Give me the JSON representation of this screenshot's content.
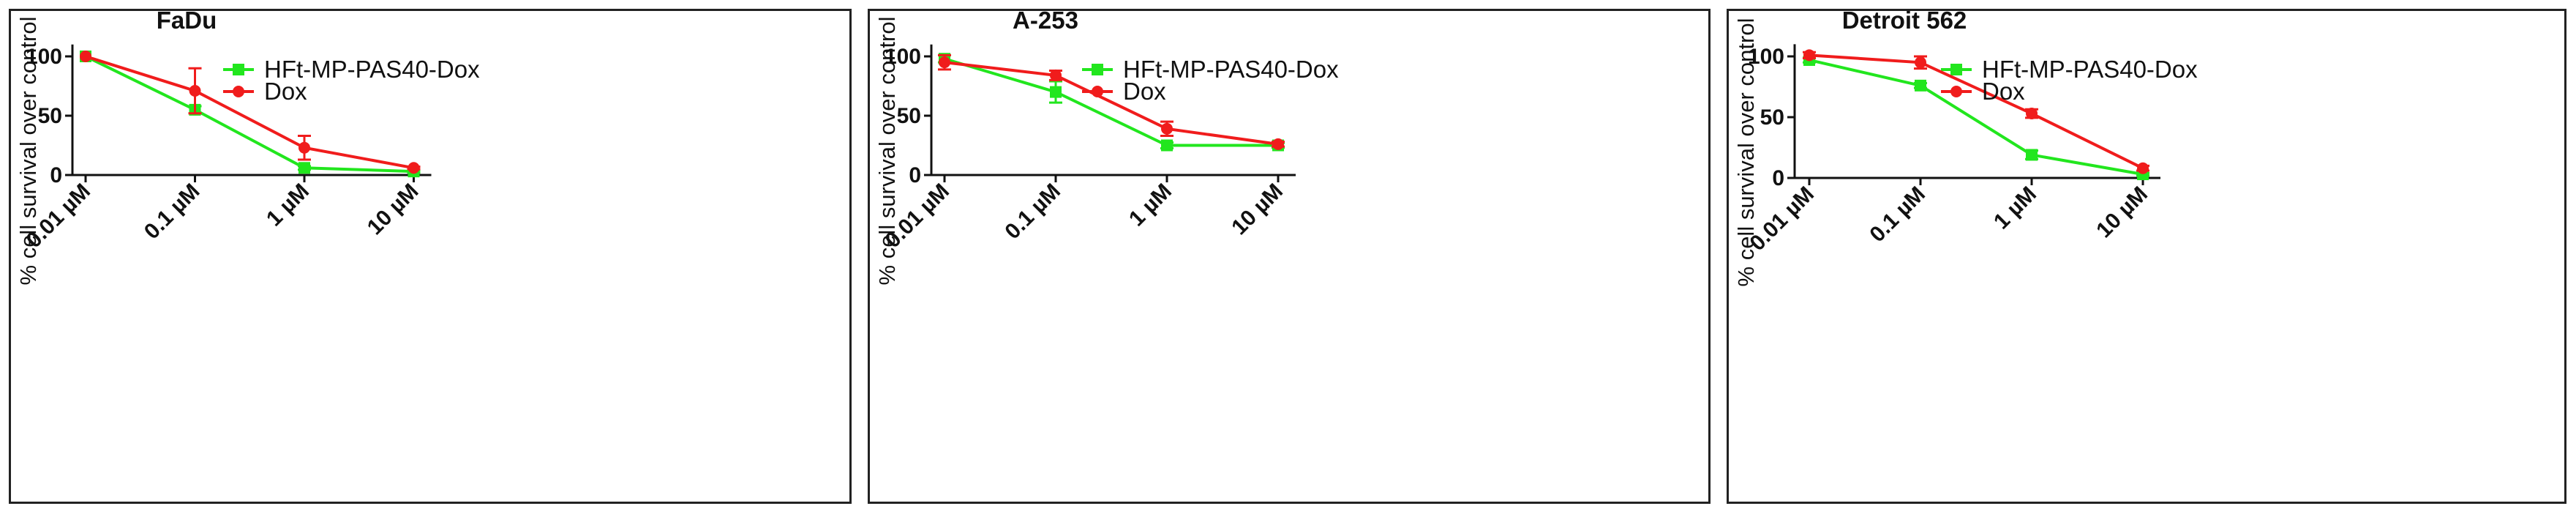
{
  "chart_data": [
    {
      "type": "line",
      "title": "FaDu",
      "xlabel": "",
      "ylabel": "% cell survival over control",
      "categories": [
        "0.01 µM",
        "0.1 µM",
        "1 µM",
        "10 µM"
      ],
      "yticks": [
        0,
        50,
        100
      ],
      "ylim": [
        0,
        110
      ],
      "legend_position": "top-right",
      "series": [
        {
          "name": "HFt-MP-PAS40-Dox",
          "color": "#22e61e",
          "marker": "square",
          "values": [
            100,
            55,
            6,
            3
          ],
          "errors": [
            0,
            3,
            1.5,
            1
          ]
        },
        {
          "name": "Dox",
          "color": "#f01c1c",
          "marker": "circle",
          "values": [
            100,
            71,
            23,
            6
          ],
          "errors": [
            0,
            19,
            10,
            1
          ]
        }
      ]
    },
    {
      "type": "line",
      "title": "A-253",
      "xlabel": "",
      "ylabel": "% cell survival over control",
      "categories": [
        "0.01 µM",
        "0.1 µM",
        "1 µM",
        "10 µM"
      ],
      "yticks": [
        0,
        50,
        100
      ],
      "ylim": [
        0,
        110
      ],
      "legend_position": "top-right",
      "series": [
        {
          "name": "HFt-MP-PAS40-Dox",
          "color": "#22e61e",
          "marker": "square",
          "values": [
            98,
            70,
            25,
            25
          ],
          "errors": [
            3,
            9,
            2.5,
            2
          ]
        },
        {
          "name": "Dox",
          "color": "#f01c1c",
          "marker": "circle",
          "values": [
            95,
            84,
            39,
            26
          ],
          "errors": [
            6,
            4,
            6,
            2
          ]
        }
      ]
    },
    {
      "type": "line",
      "title": "Detroit 562",
      "xlabel": "",
      "ylabel": "% cell survival over control",
      "categories": [
        "0.01 µM",
        "0.1 µM",
        "1 µM",
        "10 µM"
      ],
      "yticks": [
        0,
        50,
        100
      ],
      "ylim": [
        0,
        110
      ],
      "legend_position": "top-right",
      "series": [
        {
          "name": "HFt-MP-PAS40-Dox",
          "color": "#22e61e",
          "marker": "square",
          "values": [
            97,
            76,
            19,
            3
          ],
          "errors": [
            2,
            2,
            3.5,
            1
          ]
        },
        {
          "name": "Dox",
          "color": "#f01c1c",
          "marker": "circle",
          "values": [
            101,
            95,
            53,
            8
          ],
          "errors": [
            2.5,
            5,
            3.5,
            2
          ]
        }
      ]
    }
  ]
}
